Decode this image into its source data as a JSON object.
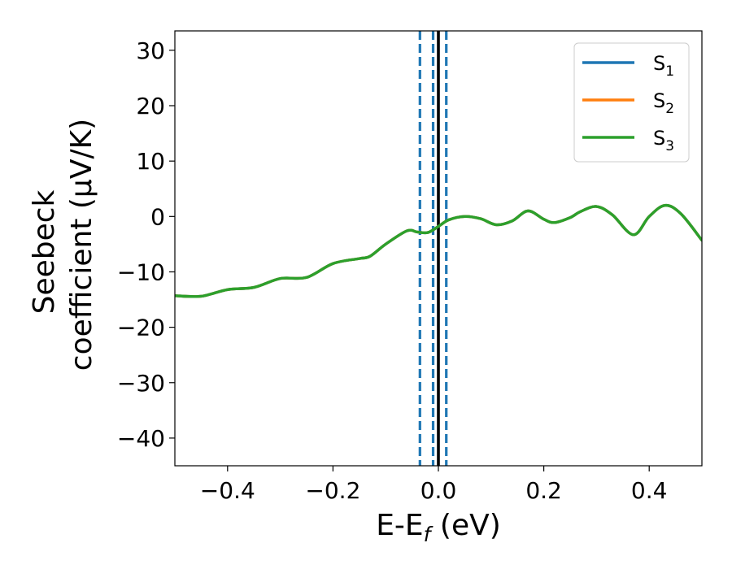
{
  "chart_data": {
    "type": "line",
    "xlabel": {
      "main": "E-E",
      "sub": "f",
      "suffix": " (eV)"
    },
    "ylabel": {
      "line1": "Seebeck",
      "line2": "coefficient  (μV/K)"
    },
    "xlim": [
      -0.5,
      0.5
    ],
    "ylim": [
      -45,
      33.5
    ],
    "xticks": [
      -0.4,
      -0.2,
      0.0,
      0.2,
      0.4
    ],
    "xtick_labels": [
      "−0.4",
      "−0.2",
      "0.0",
      "0.2",
      "0.4"
    ],
    "yticks": [
      -40,
      -30,
      -20,
      -10,
      0,
      10,
      20,
      30
    ],
    "ytick_labels": [
      "−40",
      "−30",
      "−20",
      "−10",
      "0",
      "10",
      "20",
      "30"
    ],
    "grid": false,
    "legend_position": "top-right",
    "series": [
      {
        "name": {
          "base": "S",
          "sub": "1"
        },
        "color": "#1f77b4",
        "x": [
          -0.5,
          -0.45,
          -0.4,
          -0.35,
          -0.3,
          -0.25,
          -0.2,
          -0.15,
          -0.13,
          -0.1,
          -0.06,
          -0.04,
          -0.02,
          0.0,
          0.02,
          0.05,
          0.08,
          0.11,
          0.14,
          0.17,
          0.2,
          0.22,
          0.25,
          0.27,
          0.3,
          0.33,
          0.37,
          0.4,
          0.43,
          0.46,
          0.5
        ],
        "y": [
          -14.3,
          -14.4,
          -13.2,
          -12.8,
          -11.2,
          -11.0,
          -8.5,
          -7.6,
          -7.2,
          -5.0,
          -2.6,
          -2.8,
          -2.9,
          -1.8,
          -0.6,
          0.0,
          -0.4,
          -1.5,
          -0.8,
          1.0,
          -0.5,
          -1.1,
          -0.2,
          0.9,
          1.8,
          0.3,
          -3.3,
          0.0,
          2.0,
          0.5,
          -4.3
        ]
      },
      {
        "name": {
          "base": "S",
          "sub": "2"
        },
        "color": "#ff7f0e",
        "x": [
          -0.5,
          -0.45,
          -0.4,
          -0.35,
          -0.3,
          -0.25,
          -0.2,
          -0.15,
          -0.13,
          -0.1,
          -0.06,
          -0.04,
          -0.02,
          0.0,
          0.02,
          0.05,
          0.08,
          0.11,
          0.14,
          0.17,
          0.2,
          0.22,
          0.25,
          0.27,
          0.3,
          0.33,
          0.37,
          0.4,
          0.43,
          0.46,
          0.5
        ],
        "y": [
          -14.3,
          -14.4,
          -13.2,
          -12.8,
          -11.2,
          -11.0,
          -8.5,
          -7.6,
          -7.2,
          -5.0,
          -2.6,
          -2.8,
          -2.9,
          -1.8,
          -0.6,
          0.0,
          -0.4,
          -1.5,
          -0.8,
          1.0,
          -0.5,
          -1.1,
          -0.2,
          0.9,
          1.8,
          0.3,
          -3.3,
          0.0,
          2.0,
          0.5,
          -4.3
        ]
      },
      {
        "name": {
          "base": "S",
          "sub": "3"
        },
        "color": "#2ca02c",
        "x": [
          -0.5,
          -0.45,
          -0.4,
          -0.35,
          -0.3,
          -0.25,
          -0.2,
          -0.15,
          -0.13,
          -0.1,
          -0.06,
          -0.04,
          -0.02,
          0.0,
          0.02,
          0.05,
          0.08,
          0.11,
          0.14,
          0.17,
          0.2,
          0.22,
          0.25,
          0.27,
          0.3,
          0.33,
          0.37,
          0.4,
          0.43,
          0.46,
          0.5
        ],
        "y": [
          -14.3,
          -14.4,
          -13.2,
          -12.8,
          -11.2,
          -11.0,
          -8.5,
          -7.6,
          -7.2,
          -5.0,
          -2.6,
          -2.8,
          -2.9,
          -1.8,
          -0.6,
          0.0,
          -0.4,
          -1.5,
          -0.8,
          1.0,
          -0.5,
          -1.1,
          -0.2,
          0.9,
          1.8,
          0.3,
          -3.3,
          0.0,
          2.0,
          0.5,
          -4.3
        ]
      }
    ],
    "vlines": [
      {
        "x": -0.035,
        "color": "#1f77b4",
        "style": "dashed"
      },
      {
        "x": -0.01,
        "color": "#1f77b4",
        "style": "dashed"
      },
      {
        "x": 0.015,
        "color": "#1f77b4",
        "style": "dashed"
      },
      {
        "x": 0.0,
        "color": "#000000",
        "style": "solid"
      }
    ]
  }
}
